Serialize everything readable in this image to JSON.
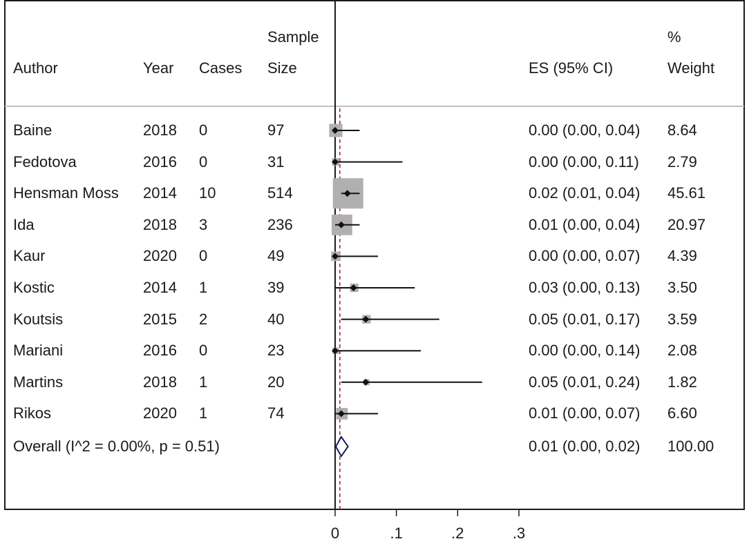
{
  "chart_data": {
    "type": "forest",
    "columns": {
      "author": "Author",
      "year": "Year",
      "cases": "Cases",
      "sample_top": "Sample",
      "sample_bottom": "Size",
      "es": "ES (95% CI)",
      "weight_top": "%",
      "weight_bottom": "Weight"
    },
    "studies": [
      {
        "author": "Baine",
        "year": "2018",
        "cases": "0",
        "n": "97",
        "es": 0.0,
        "lo": 0.0,
        "hi": 0.04,
        "es_text": "0.00 (0.00, 0.04)",
        "weight": 8.64,
        "weight_text": "8.64"
      },
      {
        "author": "Fedotova",
        "year": "2016",
        "cases": "0",
        "n": "31",
        "es": 0.0,
        "lo": 0.0,
        "hi": 0.11,
        "es_text": "0.00 (0.00, 0.11)",
        "weight": 2.79,
        "weight_text": "2.79"
      },
      {
        "author": "Hensman Moss",
        "year": "2014",
        "cases": "10",
        "n": "514",
        "es": 0.02,
        "lo": 0.01,
        "hi": 0.04,
        "es_text": "0.02 (0.01, 0.04)",
        "weight": 45.61,
        "weight_text": "45.61"
      },
      {
        "author": "Ida",
        "year": "2018",
        "cases": "3",
        "n": "236",
        "es": 0.01,
        "lo": 0.0,
        "hi": 0.04,
        "es_text": "0.01 (0.00, 0.04)",
        "weight": 20.97,
        "weight_text": "20.97"
      },
      {
        "author": "Kaur",
        "year": "2020",
        "cases": "0",
        "n": "49",
        "es": 0.0,
        "lo": 0.0,
        "hi": 0.07,
        "es_text": "0.00 (0.00, 0.07)",
        "weight": 4.39,
        "weight_text": "4.39"
      },
      {
        "author": "Kostic",
        "year": "2014",
        "cases": "1",
        "n": "39",
        "es": 0.03,
        "lo": 0.0,
        "hi": 0.13,
        "es_text": "0.03 (0.00, 0.13)",
        "weight": 3.5,
        "weight_text": "3.50"
      },
      {
        "author": "Koutsis",
        "year": "2015",
        "cases": "2",
        "n": "40",
        "es": 0.05,
        "lo": 0.01,
        "hi": 0.17,
        "es_text": "0.05 (0.01, 0.17)",
        "weight": 3.59,
        "weight_text": "3.59"
      },
      {
        "author": "Mariani",
        "year": "2016",
        "cases": "0",
        "n": "23",
        "es": 0.0,
        "lo": 0.0,
        "hi": 0.14,
        "es_text": "0.00 (0.00, 0.14)",
        "weight": 2.08,
        "weight_text": "2.08"
      },
      {
        "author": "Martins",
        "year": "2018",
        "cases": "1",
        "n": "20",
        "es": 0.05,
        "lo": 0.01,
        "hi": 0.24,
        "es_text": "0.05 (0.01, 0.24)",
        "weight": 1.82,
        "weight_text": "1.82"
      },
      {
        "author": "Rikos",
        "year": "2020",
        "cases": "1",
        "n": "74",
        "es": 0.01,
        "lo": 0.0,
        "hi": 0.07,
        "es_text": "0.01 (0.00, 0.07)",
        "weight": 6.6,
        "weight_text": "6.60"
      }
    ],
    "overall": {
      "label": "Overall  (I^2 = 0.00%, p = 0.51)",
      "es": 0.01,
      "lo": 0.0,
      "hi": 0.02,
      "es_text": "0.01 (0.00, 0.02)",
      "weight_text": "100.00"
    },
    "x_axis": {
      "ticks": [
        0,
        0.1,
        0.2,
        0.3
      ],
      "tick_labels": [
        "0",
        ".1",
        ".2",
        ".3"
      ],
      "range": [
        0,
        0.3
      ]
    },
    "null_line": 0,
    "pooled_line": 0.01,
    "colors": {
      "box": "#b0b0b0",
      "point": "#111111",
      "diamond": "#1a1a5e",
      "pooled_line": "#a0183a",
      "frame": "#1a1a1a",
      "divider": "#bfbfbf"
    }
  }
}
